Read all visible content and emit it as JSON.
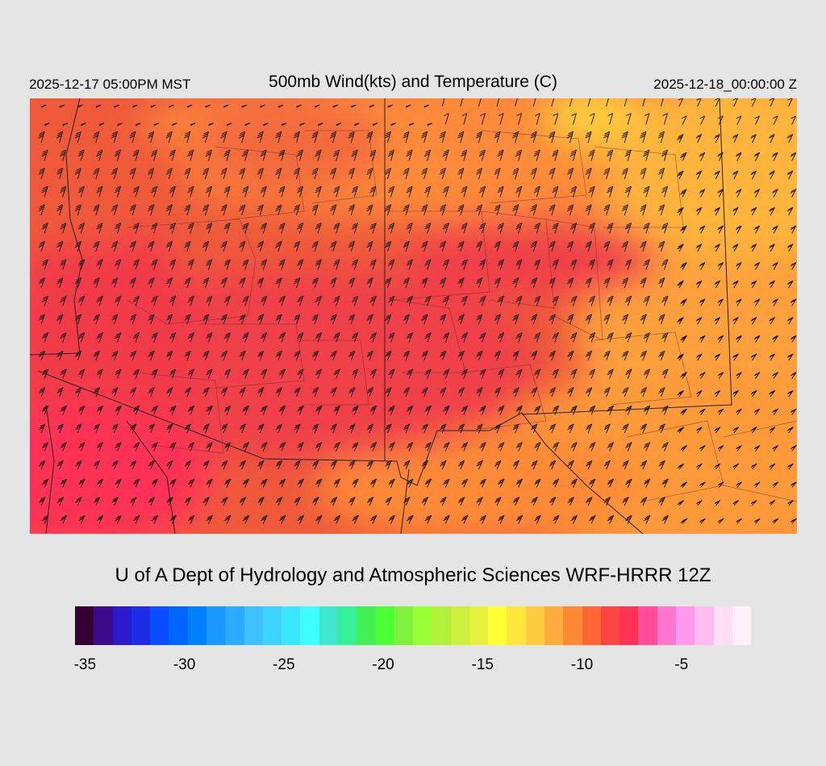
{
  "header": {
    "local_time": "2025-12-17 05:00PM MST",
    "title": "500mb Wind(kts) and Temperature (C)",
    "valid_time": "2025-12-18_00:00:00 Z"
  },
  "credit": "U of A Dept of Hydrology and Atmospheric Sciences WRF-HRRR 12Z",
  "colorbar": {
    "colors": [
      "#330033",
      "#3d0a8c",
      "#2a1acc",
      "#1a2ee6",
      "#0a4dff",
      "#0066ff",
      "#0080ff",
      "#1a99ff",
      "#29aaff",
      "#3dc2ff",
      "#3dd2ff",
      "#3de6ff",
      "#3dffff",
      "#3de6cc",
      "#33f099",
      "#44ee55",
      "#4cff33",
      "#7ff03d",
      "#99ff33",
      "#b2f03d",
      "#ccf03d",
      "#e6f03d",
      "#ffff33",
      "#ffe63d",
      "#ffcc3d",
      "#ffaa3d",
      "#ff8833",
      "#ff6633",
      "#ff4444",
      "#ff3355",
      "#ff4d99",
      "#ff77cc",
      "#ff99ee",
      "#ffbbee",
      "#ffddf5",
      "#fff0fa"
    ],
    "tick_labels": [
      "-35",
      "-30",
      "-25",
      "-20",
      "-15",
      "-10",
      "-5"
    ],
    "tick_values": [
      -35,
      -30,
      -25,
      -20,
      -15,
      -10,
      -5
    ],
    "min": -35.5,
    "max": -1.5
  },
  "map": {
    "temperature_colors": {
      "cold": "#ff3355",
      "core": "#f23d48",
      "mid": "#ef5a3a",
      "warm": "#ff8833",
      "warmer": "#ffaa3d",
      "warmest": "#ffcc3d",
      "hot": "#ffe63d"
    }
  }
}
